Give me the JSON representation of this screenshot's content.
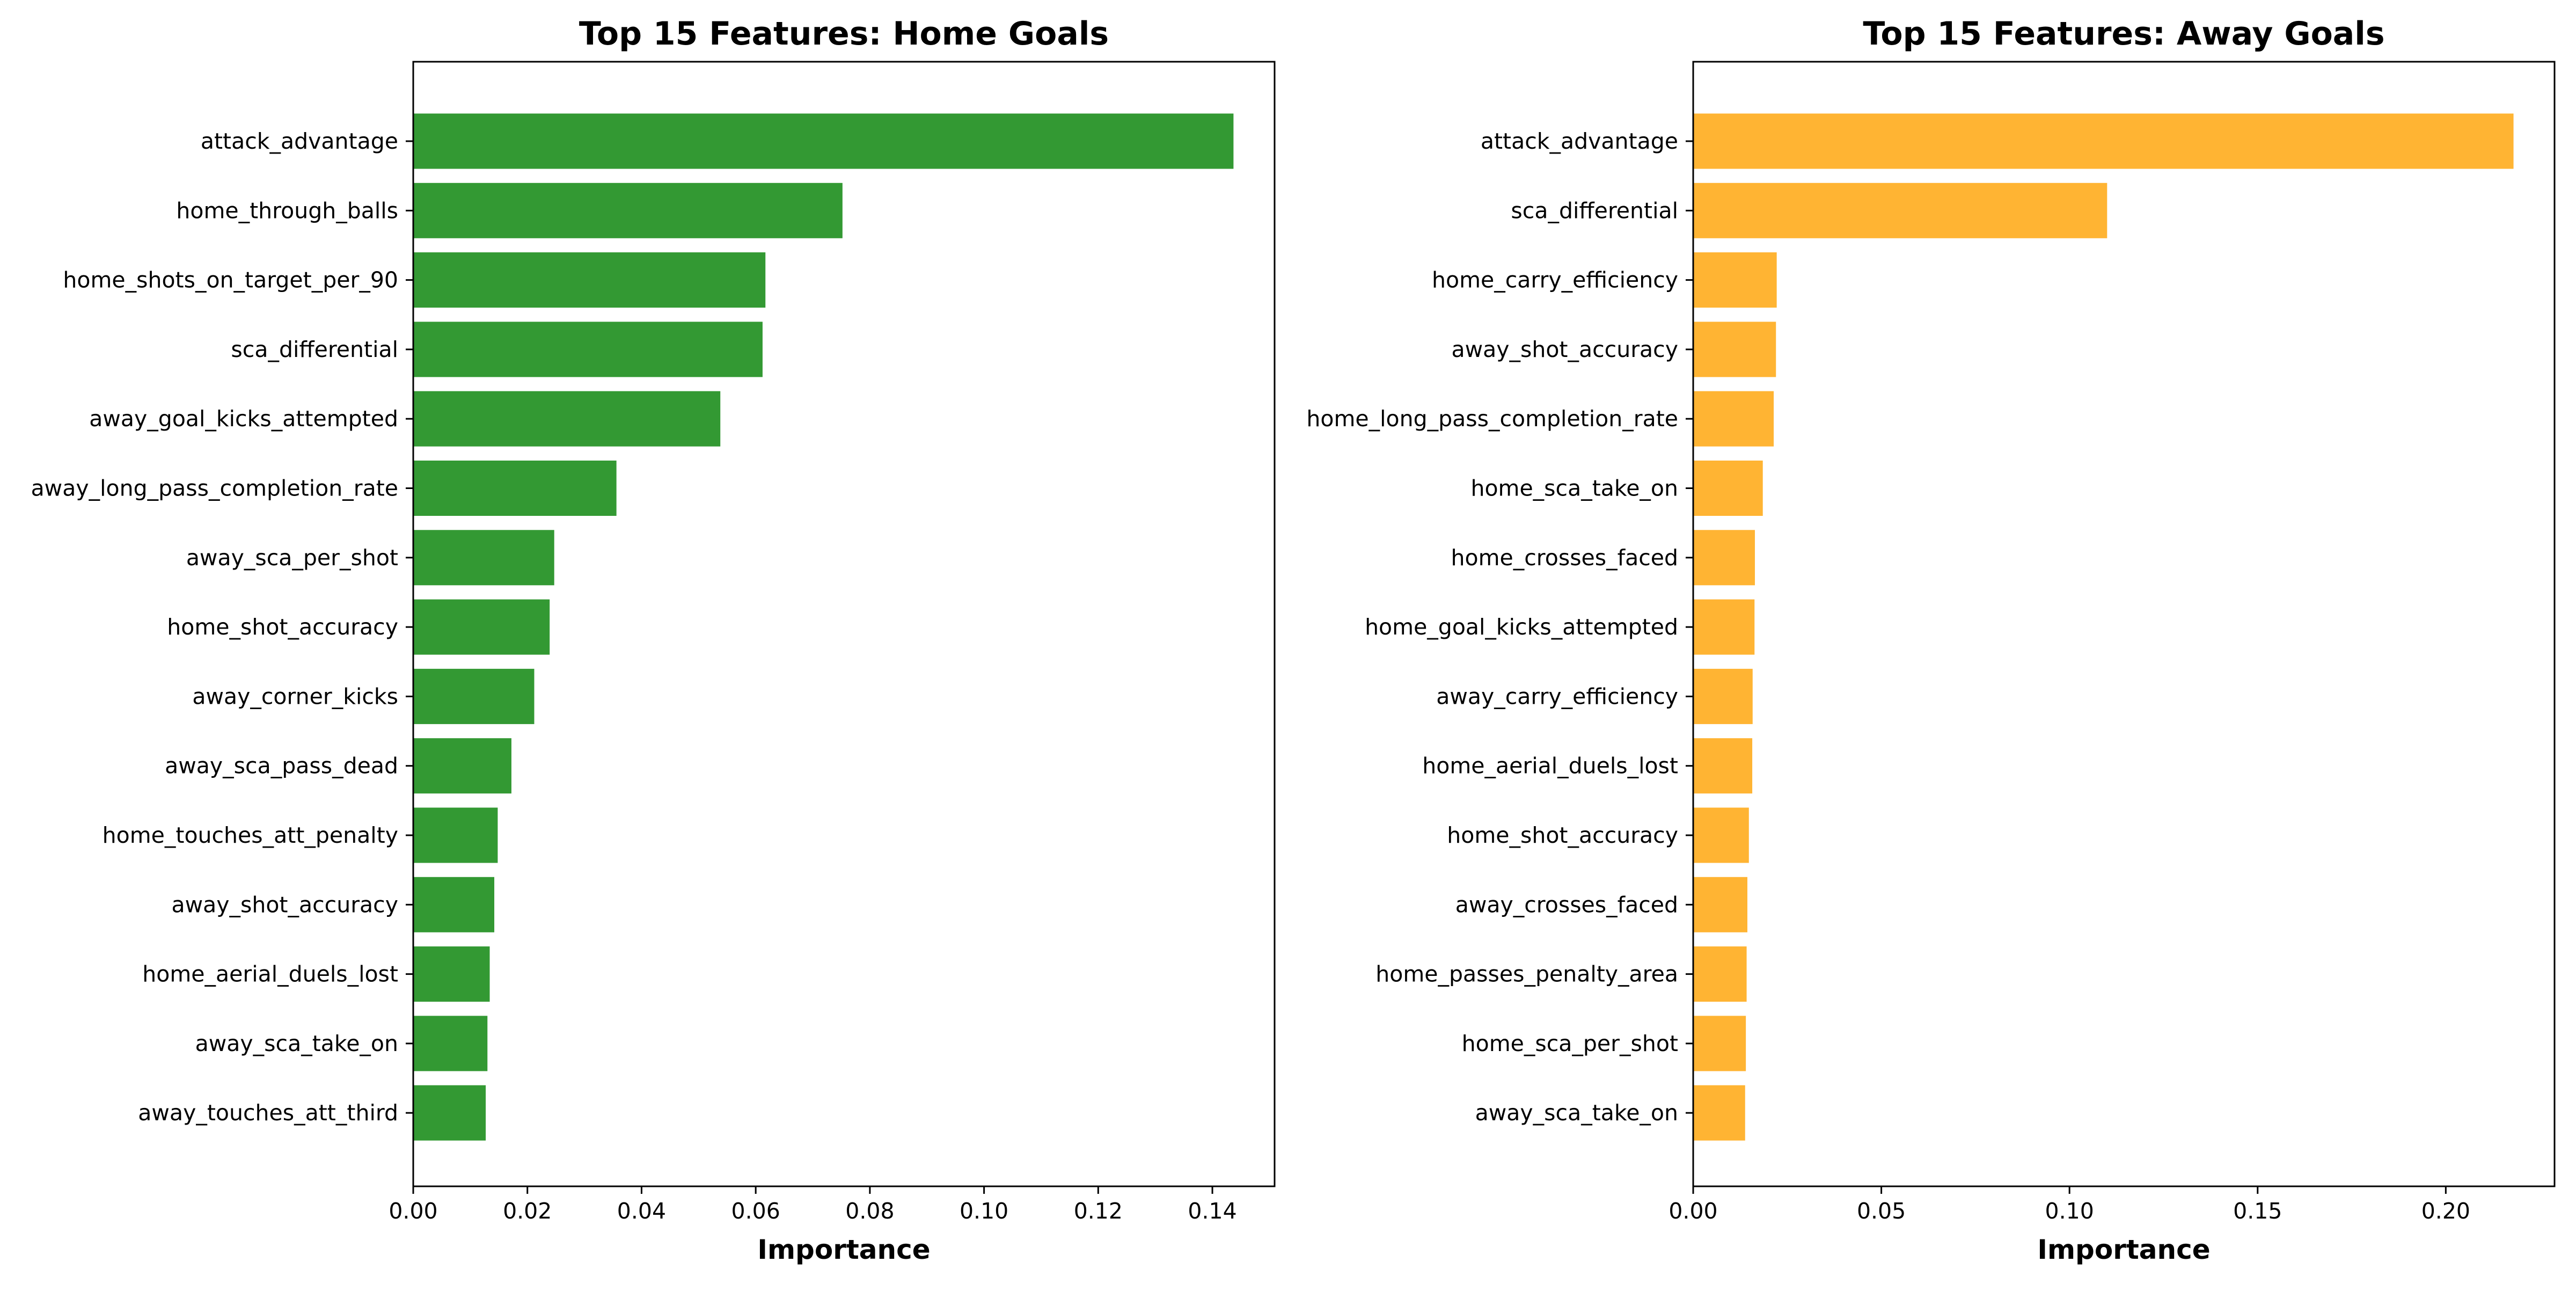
{
  "chart_data": [
    {
      "type": "bar",
      "orientation": "horizontal",
      "title": "Top 15 Features: Home Goals",
      "xlabel": "Importance",
      "ylabel": "",
      "color": "#339933",
      "xlim": [
        0,
        0.1509
      ],
      "xticks": [
        "0.00",
        "0.02",
        "0.04",
        "0.06",
        "0.08",
        "0.10",
        "0.12",
        "0.14"
      ],
      "categories": [
        "attack_advantage",
        "home_through_balls",
        "home_shots_on_target_per_90",
        "sca_differential",
        "away_goal_kicks_attempted",
        "away_long_pass_completion_rate",
        "away_sca_per_shot",
        "home_shot_accuracy",
        "away_corner_kicks",
        "away_sca_pass_dead",
        "home_touches_att_penalty",
        "away_shot_accuracy",
        "home_aerial_duels_lost",
        "away_sca_take_on",
        "away_touches_att_third"
      ],
      "values": [
        0.1437,
        0.0752,
        0.0617,
        0.0612,
        0.0538,
        0.0356,
        0.0247,
        0.0239,
        0.0212,
        0.0172,
        0.0148,
        0.0142,
        0.0134,
        0.013,
        0.0127
      ],
      "grid": false
    },
    {
      "type": "bar",
      "orientation": "horizontal",
      "title": "Top 15 Features: Away Goals",
      "xlabel": "Importance",
      "ylabel": "",
      "color": "#FFB433",
      "xlim": [
        0,
        0.2289
      ],
      "xticks": [
        "0.00",
        "0.05",
        "0.10",
        "0.15",
        "0.20"
      ],
      "categories": [
        "attack_advantage",
        "sca_differential",
        "home_carry_efficiency",
        "away_shot_accuracy",
        "home_long_pass_completion_rate",
        "home_sca_take_on",
        "home_crosses_faced",
        "home_goal_kicks_attempted",
        "away_carry_efficiency",
        "home_aerial_duels_lost",
        "home_shot_accuracy",
        "away_crosses_faced",
        "home_passes_penalty_area",
        "home_sca_per_shot",
        "away_sca_take_on"
      ],
      "values": [
        0.218,
        0.11,
        0.0222,
        0.022,
        0.0214,
        0.0185,
        0.0164,
        0.0163,
        0.0158,
        0.0157,
        0.0148,
        0.0144,
        0.0142,
        0.014,
        0.0138
      ],
      "grid": false
    }
  ]
}
